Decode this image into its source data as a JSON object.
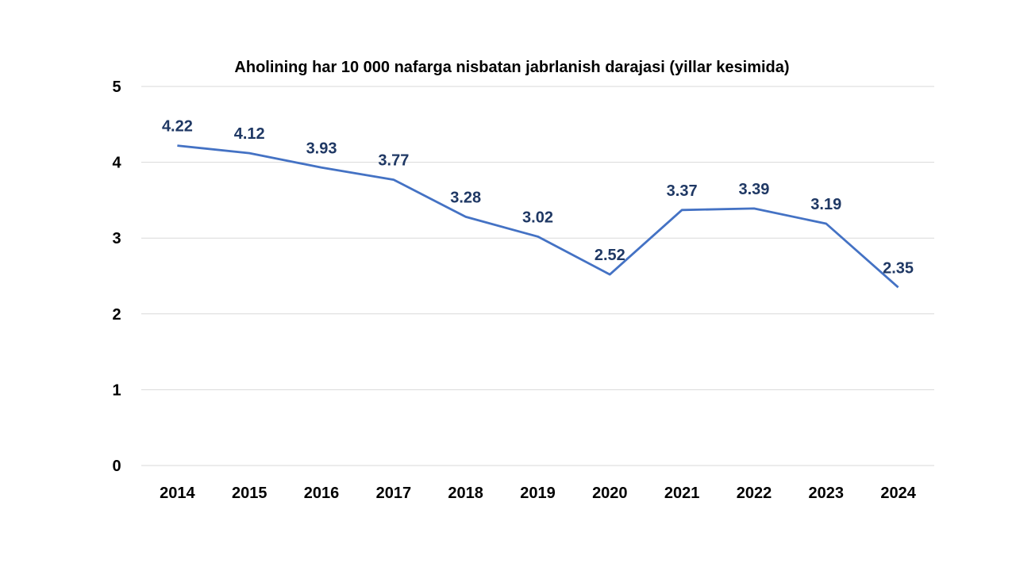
{
  "chart_data": {
    "type": "line",
    "title": "Aholining har 10 000 nafarga nisbatan jabrlanish darajasi (yillar kesimida)",
    "xlabel": "",
    "ylabel": "",
    "categories": [
      "2014",
      "2015",
      "2016",
      "2017",
      "2018",
      "2019",
      "2020",
      "2021",
      "2022",
      "2023",
      "2024"
    ],
    "series": [
      {
        "values": [
          4.22,
          4.12,
          3.93,
          3.77,
          3.28,
          3.02,
          2.52,
          3.37,
          3.39,
          3.19,
          2.35
        ],
        "color": "#4472C4"
      }
    ],
    "data_labels": [
      "4.22",
      "4.12",
      "3.93",
      "3.77",
      "3.28",
      "3.02",
      "2.52",
      "3.37",
      "3.39",
      "3.19",
      "2.35"
    ],
    "data_label_color": "#1F3864",
    "ylim": [
      0,
      5
    ],
    "yticks": [
      "0",
      "1",
      "2",
      "3",
      "4",
      "5"
    ],
    "grid": true,
    "legend": "none"
  }
}
